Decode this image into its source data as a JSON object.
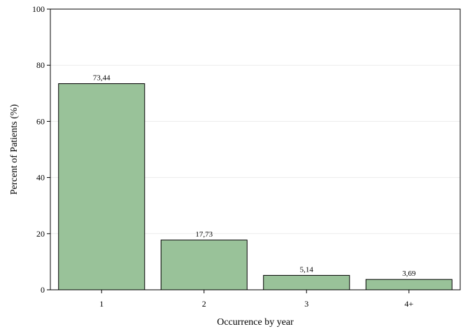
{
  "chart_data": {
    "type": "bar",
    "categories": [
      "1",
      "2",
      "3",
      "4+"
    ],
    "values": [
      73.44,
      17.73,
      5.14,
      3.69
    ],
    "data_labels": [
      "73,44",
      "17,73",
      "5,14",
      "3,69"
    ],
    "xlabel": "Occurrence by year",
    "ylabel": "Percent of Patients (%)",
    "ylim": [
      0,
      100
    ],
    "yticks": [
      0,
      20,
      40,
      60,
      80,
      100
    ],
    "grid": true,
    "bar_color": "#99c299",
    "bar_edge_color": "#000000",
    "grid_color": "#ececec"
  }
}
